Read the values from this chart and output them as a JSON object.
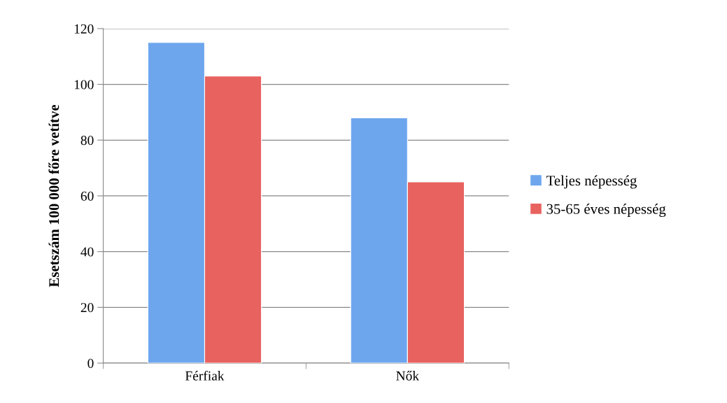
{
  "chart_data": {
    "type": "bar",
    "ylabel": "Esetszám 100 000 főre vetítve",
    "categories": [
      "Férfiak",
      "Nők"
    ],
    "series": [
      {
        "name": "Teljes népesség",
        "color": "#6ea6ee",
        "values": [
          115,
          88
        ]
      },
      {
        "name": "35-65 éves népesség",
        "color": "#e8625f",
        "values": [
          103,
          65
        ]
      }
    ],
    "ylim": [
      0,
      120
    ],
    "yticks": [
      0,
      20,
      40,
      60,
      80,
      100,
      120
    ],
    "grid": "y",
    "legend": "right"
  }
}
